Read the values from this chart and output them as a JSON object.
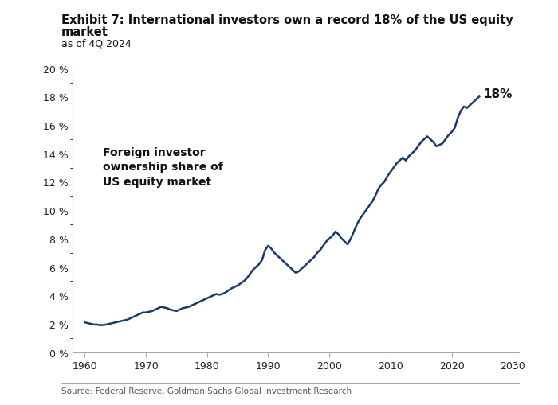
{
  "title_line1": "Exhibit 7: International investors own a record 18% of the US equity",
  "title_line2": "market",
  "subtitle": "as of 4Q 2024",
  "source": "Source: Federal Reserve, Goldman Sachs Global Investment Research",
  "annotation_text": "Foreign investor\nownership share of\nUS equity market",
  "end_label": "18%",
  "line_color": "#1a3a6b",
  "background_color": "#ffffff",
  "xlim": [
    1958,
    2031
  ],
  "ylim": [
    0,
    20
  ],
  "xticks": [
    1960,
    1970,
    1980,
    1990,
    2000,
    2010,
    2020,
    2030
  ],
  "yticks": [
    0,
    2,
    4,
    6,
    8,
    10,
    12,
    14,
    16,
    18,
    20
  ],
  "data": {
    "years": [
      1960.0,
      1960.5,
      1961.0,
      1961.5,
      1962.0,
      1962.5,
      1963.0,
      1963.5,
      1964.0,
      1964.5,
      1965.0,
      1965.5,
      1966.0,
      1966.5,
      1967.0,
      1967.5,
      1968.0,
      1968.5,
      1969.0,
      1969.5,
      1970.0,
      1970.5,
      1971.0,
      1971.5,
      1972.0,
      1972.5,
      1973.0,
      1973.5,
      1974.0,
      1974.5,
      1975.0,
      1975.5,
      1976.0,
      1976.5,
      1977.0,
      1977.5,
      1978.0,
      1978.5,
      1979.0,
      1979.5,
      1980.0,
      1980.5,
      1981.0,
      1981.5,
      1982.0,
      1982.5,
      1983.0,
      1983.5,
      1984.0,
      1984.5,
      1985.0,
      1985.5,
      1986.0,
      1986.5,
      1987.0,
      1987.5,
      1988.0,
      1988.5,
      1989.0,
      1989.5,
      1990.0,
      1990.5,
      1991.0,
      1991.5,
      1992.0,
      1992.5,
      1993.0,
      1993.5,
      1994.0,
      1994.5,
      1995.0,
      1995.5,
      1996.0,
      1996.5,
      1997.0,
      1997.5,
      1998.0,
      1998.5,
      1999.0,
      1999.5,
      2000.0,
      2000.5,
      2001.0,
      2001.5,
      2002.0,
      2002.5,
      2003.0,
      2003.5,
      2004.0,
      2004.5,
      2005.0,
      2005.5,
      2006.0,
      2006.5,
      2007.0,
      2007.5,
      2008.0,
      2008.5,
      2009.0,
      2009.5,
      2010.0,
      2010.5,
      2011.0,
      2011.5,
      2012.0,
      2012.5,
      2013.0,
      2013.5,
      2014.0,
      2014.5,
      2015.0,
      2015.5,
      2016.0,
      2016.5,
      2017.0,
      2017.5,
      2018.0,
      2018.5,
      2019.0,
      2019.5,
      2020.0,
      2020.5,
      2021.0,
      2021.5,
      2022.0,
      2022.5,
      2023.0,
      2023.5,
      2024.0,
      2024.5
    ],
    "values": [
      2.1,
      2.05,
      2.0,
      1.95,
      1.95,
      1.9,
      1.92,
      1.95,
      2.0,
      2.05,
      2.1,
      2.15,
      2.2,
      2.25,
      2.3,
      2.4,
      2.5,
      2.6,
      2.7,
      2.8,
      2.8,
      2.85,
      2.9,
      3.0,
      3.1,
      3.2,
      3.15,
      3.1,
      3.0,
      2.95,
      2.9,
      3.0,
      3.1,
      3.15,
      3.2,
      3.3,
      3.4,
      3.5,
      3.6,
      3.7,
      3.8,
      3.9,
      4.0,
      4.1,
      4.05,
      4.1,
      4.2,
      4.35,
      4.5,
      4.6,
      4.7,
      4.85,
      5.0,
      5.2,
      5.5,
      5.8,
      6.0,
      6.2,
      6.5,
      7.2,
      7.5,
      7.3,
      7.0,
      6.8,
      6.6,
      6.4,
      6.2,
      6.0,
      5.8,
      5.6,
      5.7,
      5.9,
      6.1,
      6.3,
      6.5,
      6.7,
      7.0,
      7.2,
      7.5,
      7.8,
      8.0,
      8.2,
      8.5,
      8.3,
      8.0,
      7.8,
      7.6,
      8.0,
      8.5,
      9.0,
      9.4,
      9.7,
      10.0,
      10.3,
      10.6,
      11.0,
      11.5,
      11.8,
      12.0,
      12.4,
      12.7,
      13.0,
      13.3,
      13.5,
      13.7,
      13.5,
      13.8,
      14.0,
      14.2,
      14.5,
      14.8,
      15.0,
      15.2,
      15.0,
      14.8,
      14.5,
      14.6,
      14.7,
      15.0,
      15.3,
      15.5,
      15.8,
      16.5,
      17.0,
      17.3,
      17.2,
      17.4,
      17.6,
      17.8,
      18.0
    ]
  }
}
